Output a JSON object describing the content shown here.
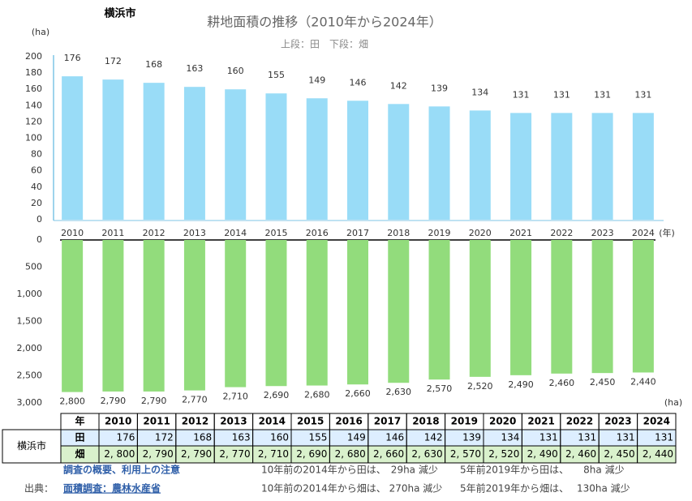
{
  "region": "横浜市",
  "chart_data": [
    {
      "type": "bar",
      "title": "耕地面積の推移（2010年から2024年）",
      "subtitle": "上段：田　下段：畑",
      "y_label": "(ha)",
      "x_label": "(年)",
      "series_label": "田",
      "categories": [
        "2010",
        "2011",
        "2012",
        "2013",
        "2014",
        "2015",
        "2016",
        "2017",
        "2018",
        "2019",
        "2020",
        "2021",
        "2022",
        "2023",
        "2024"
      ],
      "values": [
        176,
        172,
        168,
        163,
        160,
        155,
        149,
        146,
        142,
        139,
        134,
        131,
        131,
        131,
        131
      ],
      "color": "#99dcf7",
      "ylim": [
        0,
        200
      ],
      "yticks": [
        0,
        20,
        40,
        60,
        80,
        100,
        120,
        140,
        160,
        180,
        200
      ]
    },
    {
      "type": "bar",
      "inverted": true,
      "series_label": "畑",
      "y_label": "(ha)",
      "values": [
        2800,
        2790,
        2790,
        2770,
        2710,
        2690,
        2680,
        2660,
        2630,
        2570,
        2520,
        2490,
        2460,
        2450,
        2440
      ],
      "value_labels": [
        "2,800",
        "2,790",
        "2,790",
        "2,770",
        "2,710",
        "2,690",
        "2,680",
        "2,660",
        "2,630",
        "2,570",
        "2,520",
        "2,490",
        "2,460",
        "2,450",
        "2,440"
      ],
      "color": "#92dc7c",
      "ylim": [
        0,
        3000
      ],
      "yticks": [
        0,
        500,
        {
          "value": 1000,
          "label": "1,000"
        },
        {
          "value": 1500,
          "label": "1,500"
        },
        {
          "value": 2000,
          "label": "2,000"
        },
        {
          "value": 2500,
          "label": "2,500"
        },
        {
          "value": 3000,
          "label": "3,000"
        }
      ]
    }
  ],
  "table": {
    "header": [
      "年",
      "2010",
      "2011",
      "2012",
      "2013",
      "2014",
      "2015",
      "2016",
      "2017",
      "2018",
      "2019",
      "2020",
      "2021",
      "2022",
      "2023",
      "2024"
    ],
    "region": "横浜市",
    "rows": [
      [
        "田",
        "176",
        "172",
        "168",
        "163",
        "160",
        "155",
        "149",
        "146",
        "142",
        "139",
        "134",
        "131",
        "131",
        "131",
        "131"
      ],
      [
        "畑",
        "2, 800",
        "2, 790",
        "2, 790",
        "2, 770",
        "2, 710",
        "2, 690",
        "2, 680",
        "2, 660",
        "2, 630",
        "2, 570",
        "2, 520",
        "2, 490",
        "2, 460",
        "2, 450",
        "2, 440"
      ]
    ]
  },
  "notes": {
    "survey_link": "調査の概要、利用上の注意",
    "source_label": "出典：",
    "source_link": "面積調査：農林水産省",
    "lines": [
      "10年前の2014年から田は、　29ha 減少",
      "5年前2019年から田は、　　8ha 減少",
      "10年前の2014年から畑は、 270ha 減少",
      "5年前2019年から畑は、　 130ha 減少"
    ]
  }
}
